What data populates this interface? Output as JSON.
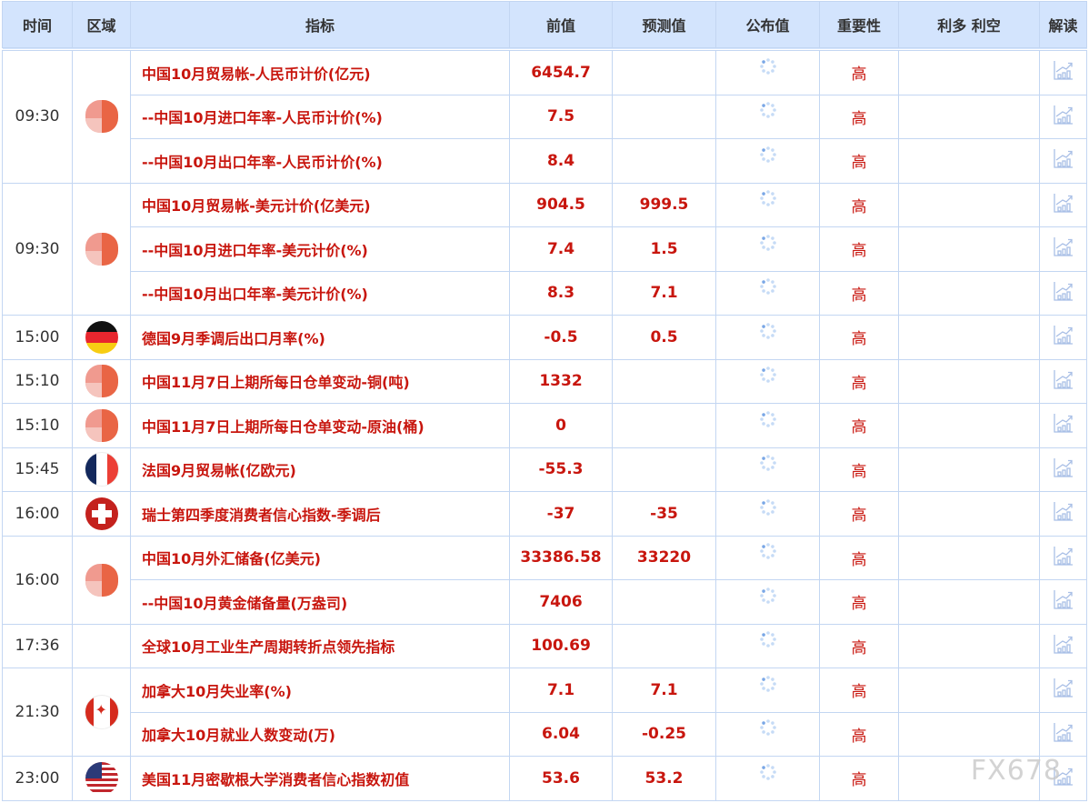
{
  "headers": [
    "时间",
    "区域",
    "指标",
    "前值",
    "预测值",
    "公布值",
    "重要性",
    "利多 利空",
    "解读"
  ],
  "colors": {
    "accent_red": "#c8160e",
    "header_bg": "#d3e4fd",
    "border": "#c3d6f2"
  },
  "groups": [
    {
      "time": "09:30",
      "flag": "cn",
      "rows": [
        {
          "indicator": "中国10月贸易帐-人民币计价(亿元)",
          "prev": "6454.7",
          "forecast": "",
          "actual": "",
          "importance": "高"
        },
        {
          "indicator": "--中国10月进口年率-人民币计价(%)",
          "prev": "7.5",
          "forecast": "",
          "actual": "",
          "importance": "高"
        },
        {
          "indicator": "--中国10月出口年率-人民币计价(%)",
          "prev": "8.4",
          "forecast": "",
          "actual": "",
          "importance": "高"
        }
      ]
    },
    {
      "time": "09:30",
      "flag": "cn",
      "rows": [
        {
          "indicator": "中国10月贸易帐-美元计价(亿美元)",
          "prev": "904.5",
          "forecast": "999.5",
          "actual": "",
          "importance": "高"
        },
        {
          "indicator": "--中国10月进口年率-美元计价(%)",
          "prev": "7.4",
          "forecast": "1.5",
          "actual": "",
          "importance": "高"
        },
        {
          "indicator": "--中国10月出口年率-美元计价(%)",
          "prev": "8.3",
          "forecast": "7.1",
          "actual": "",
          "importance": "高"
        }
      ]
    },
    {
      "time": "15:00",
      "flag": "de",
      "rows": [
        {
          "indicator": "德国9月季调后出口月率(%)",
          "prev": "-0.5",
          "forecast": "0.5",
          "actual": "",
          "importance": "高"
        }
      ]
    },
    {
      "time": "15:10",
      "flag": "cn",
      "rows": [
        {
          "indicator": "中国11月7日上期所每日仓单变动-铜(吨)",
          "prev": "1332",
          "forecast": "",
          "actual": "",
          "importance": "高"
        }
      ]
    },
    {
      "time": "15:10",
      "flag": "cn",
      "rows": [
        {
          "indicator": "中国11月7日上期所每日仓单变动-原油(桶)",
          "prev": "0",
          "forecast": "",
          "actual": "",
          "importance": "高"
        }
      ]
    },
    {
      "time": "15:45",
      "flag": "fr",
      "rows": [
        {
          "indicator": "法国9月贸易帐(亿欧元)",
          "prev": "-55.3",
          "forecast": "",
          "actual": "",
          "importance": "高"
        }
      ]
    },
    {
      "time": "16:00",
      "flag": "ch",
      "rows": [
        {
          "indicator": "瑞士第四季度消费者信心指数-季调后",
          "prev": "-37",
          "forecast": "-35",
          "actual": "",
          "importance": "高"
        }
      ]
    },
    {
      "time": "16:00",
      "flag": "cn",
      "rows": [
        {
          "indicator": "中国10月外汇储备(亿美元)",
          "prev": "33386.58",
          "forecast": "33220",
          "actual": "",
          "importance": "高"
        },
        {
          "indicator": "--中国10月黄金储备量(万盎司)",
          "prev": "7406",
          "forecast": "",
          "actual": "",
          "importance": "高"
        }
      ]
    },
    {
      "time": "17:36",
      "flag": "",
      "rows": [
        {
          "indicator": "全球10月工业生产周期转折点领先指标",
          "prev": "100.69",
          "forecast": "",
          "actual": "",
          "importance": "高"
        }
      ]
    },
    {
      "time": "21:30",
      "flag": "ca",
      "rows": [
        {
          "indicator": "加拿大10月失业率(%)",
          "prev": "7.1",
          "forecast": "7.1",
          "actual": "",
          "importance": "高"
        },
        {
          "indicator": "加拿大10月就业人数变动(万)",
          "prev": "6.04",
          "forecast": "-0.25",
          "actual": "",
          "importance": "高"
        }
      ]
    },
    {
      "time": "23:00",
      "flag": "us",
      "rows": [
        {
          "indicator": "美国11月密歇根大学消费者信心指数初值",
          "prev": "53.6",
          "forecast": "53.2",
          "actual": "",
          "importance": "高"
        }
      ]
    }
  ],
  "icons": {
    "actual_pending": "loading-spinner-icon",
    "interpret": "chart-trend-icon"
  },
  "watermark": "FX678"
}
